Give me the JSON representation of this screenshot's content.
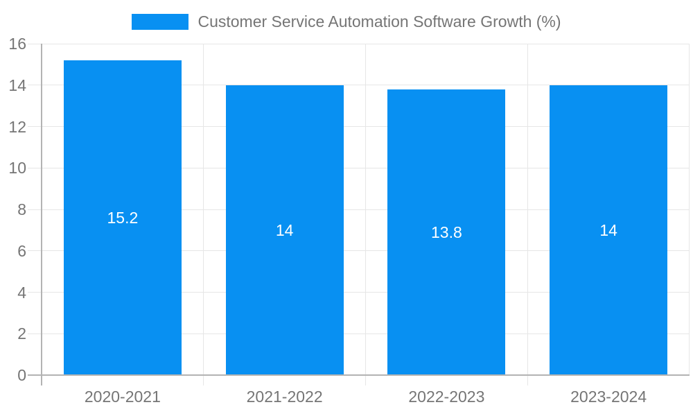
{
  "chart_data": {
    "type": "bar",
    "title": "Customer Service Automation Software Growth (%)",
    "categories": [
      "2020-2021",
      "2021-2022",
      "2022-2023",
      "2023-2024"
    ],
    "values": [
      15.2,
      14,
      13.8,
      14
    ],
    "bar_labels": [
      "15.2",
      "14",
      "13.8",
      "14"
    ],
    "xlabel": "",
    "ylabel": "",
    "ylim": [
      0,
      16
    ],
    "yticks": [
      0,
      2,
      4,
      6,
      8,
      10,
      12,
      14,
      16
    ],
    "ytick_labels": [
      "0",
      "2",
      "4",
      "6",
      "8",
      "10",
      "12",
      "14",
      "16"
    ],
    "grid": "on",
    "legend_position": "top-center",
    "colors": {
      "bar": "#0890f2",
      "grid": "#e6e6e6",
      "axis": "#b3b3b3",
      "tick_label": "#757575",
      "legend_label": "#757575",
      "bar_label": "#ffffff",
      "background": "#ffffff"
    }
  }
}
